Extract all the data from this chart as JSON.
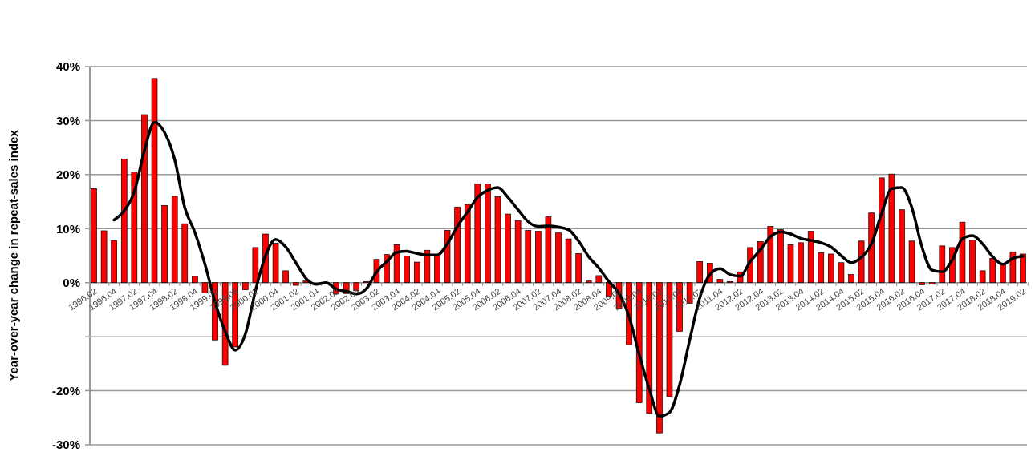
{
  "chart_data": {
    "type": "bar",
    "ylabel": "Year-over-year change in repeat-sales index",
    "categories": [
      "1996.02",
      null,
      "1996.04",
      null,
      "1997.02",
      null,
      "1997.04",
      null,
      "1998.02",
      null,
      "1998.04",
      null,
      "1999.02",
      null,
      "1999.04",
      null,
      "2000.02",
      null,
      "2000.04",
      null,
      "2001.02",
      null,
      "2001.04",
      null,
      "2002.02",
      null,
      "2002.04",
      null,
      "2003.02",
      null,
      "2003.04",
      null,
      "2004.02",
      null,
      "2004.04",
      null,
      "2005.02",
      null,
      "2005.04",
      null,
      "2006.02",
      null,
      "2006.04",
      null,
      "2007.02",
      null,
      "2007.04",
      null,
      "2008.02",
      null,
      "2008.04",
      null,
      "2009.02",
      null,
      "2009.04",
      null,
      "2010.02",
      null,
      "2010.04",
      null,
      "2011.02",
      null,
      "2011.04",
      null,
      "2012.02",
      null,
      "2012.04",
      null,
      "2013.02",
      null,
      "2013.04",
      null,
      "2014.02",
      null,
      "2014.04",
      null,
      "2015.02",
      null,
      "2015.04",
      null,
      "2016.02",
      null,
      "2016.04",
      null,
      "2017.02",
      null,
      "2017.04",
      null,
      "2018.02",
      null,
      "2018.04",
      null,
      "2019.02"
    ],
    "series": [
      {
        "type": "bar",
        "color": "#ff0000",
        "values": [
          17.4,
          9.6,
          7.8,
          22.9,
          20.5,
          31.1,
          37.8,
          14.3,
          16.0,
          10.9,
          1.2,
          -1.9,
          -10.6,
          -15.3,
          -11.9,
          -1.3,
          6.5,
          9.0,
          7.3,
          2.2,
          -0.5,
          0.3,
          0.0,
          0.0,
          -2.1,
          -2.0,
          -1.5,
          0.2,
          4.3,
          5.2,
          7.0,
          4.9,
          3.8,
          6.0,
          5.0,
          9.7,
          14.0,
          14.5,
          18.3,
          18.3,
          15.9,
          12.7,
          11.5,
          9.7,
          9.5,
          12.2,
          9.2,
          8.1,
          5.4,
          0.3,
          1.3,
          -2.5,
          -4.8,
          -11.5,
          -22.2,
          -24.2,
          -27.8,
          -21.1,
          -9.0,
          -3.8,
          3.9,
          3.6,
          0.6,
          0.2,
          2.0,
          6.5,
          7.6,
          10.4,
          9.8,
          7.0,
          7.4,
          9.5,
          5.5,
          5.3,
          3.7,
          1.5,
          7.7,
          12.9,
          19.4,
          20.1,
          13.5,
          7.7,
          -0.4,
          -0.3,
          6.8,
          6.5,
          11.2,
          7.9,
          2.2,
          4.5,
          3.3,
          5.7,
          5.3
        ]
      },
      {
        "type": "line",
        "color": "#000000",
        "values": [
          null,
          null,
          11.6,
          13.3,
          16.8,
          24.4,
          29.7,
          27.8,
          22.8,
          13.9,
          9.3,
          3.4,
          -3.6,
          -9.0,
          -12.5,
          -9.5,
          -1.5,
          5.0,
          8.0,
          6.6,
          3.7,
          0.8,
          -0.3,
          0.0,
          -1.2,
          -1.6,
          -2.1,
          -1.1,
          2.0,
          3.9,
          5.6,
          5.8,
          5.4,
          5.1,
          5.1,
          7.2,
          10.4,
          13.1,
          15.8,
          17.1,
          17.6,
          15.8,
          13.5,
          11.3,
          10.4,
          10.5,
          10.3,
          9.8,
          7.7,
          4.8,
          2.7,
          0.2,
          -2.0,
          -6.3,
          -13.3,
          -19.7,
          -24.7,
          -24.0,
          -18.9,
          -10.6,
          -2.8,
          1.5,
          2.6,
          1.5,
          1.2,
          3.9,
          6.1,
          8.5,
          9.4,
          9.0,
          8.2,
          7.8,
          7.4,
          6.6,
          5.0,
          3.7,
          4.7,
          7.2,
          12.8,
          17.4,
          17.6,
          13.9,
          6.6,
          2.3,
          2.0,
          4.2,
          8.1,
          8.7,
          7.2,
          4.8,
          3.4,
          4.5,
          4.9
        ]
      }
    ],
    "ylim": [
      -30,
      40
    ],
    "yticks": [
      {
        "value": 40,
        "label": "40%"
      },
      {
        "value": 30,
        "label": "30%"
      },
      {
        "value": 20,
        "label": "20%"
      },
      {
        "value": 10,
        "label": "10%"
      },
      {
        "value": 0,
        "label": "0%"
      },
      {
        "value": -10,
        "label": null
      },
      {
        "value": -20,
        "label": "-20%"
      },
      {
        "value": -30,
        "label": "-30%"
      }
    ],
    "grid": "y",
    "marker": "none",
    "line_style": "solid"
  }
}
